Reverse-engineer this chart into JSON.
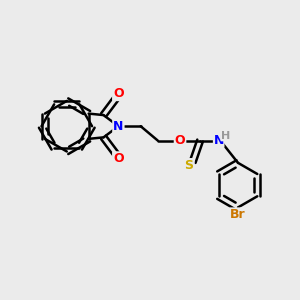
{
  "bg_color": "#ebebeb",
  "bond_color": "#000000",
  "bond_width": 1.8,
  "atom_colors": {
    "O": "#ff0000",
    "N": "#0000ff",
    "S": "#ccaa00",
    "Br": "#cc7700",
    "H": "#999999",
    "C": "#000000"
  },
  "font_size": 9,
  "fig_size": [
    3.0,
    3.0
  ],
  "dpi": 100
}
